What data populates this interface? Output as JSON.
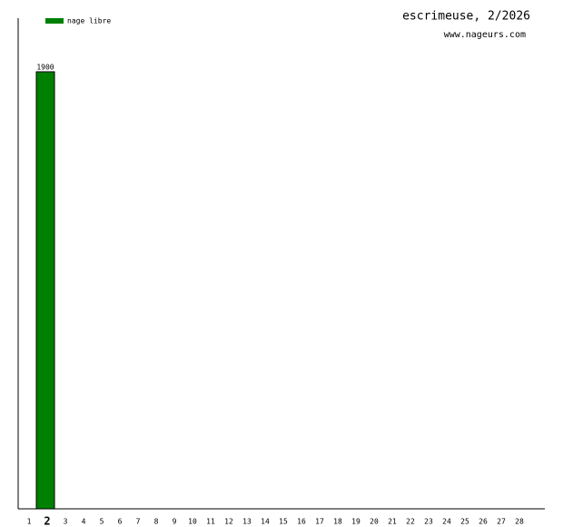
{
  "chart_data": {
    "type": "bar",
    "title": "escrimeuse, 2/2026",
    "subtitle": "www.nageurs.com",
    "categories": [
      "1",
      "2",
      "3",
      "4",
      "5",
      "6",
      "7",
      "8",
      "9",
      "10",
      "11",
      "12",
      "13",
      "14",
      "15",
      "16",
      "17",
      "18",
      "19",
      "20",
      "21",
      "22",
      "23",
      "24",
      "25",
      "26",
      "27",
      "28"
    ],
    "series": [
      {
        "name": "nage libre",
        "color": "#008000",
        "values": [
          null,
          1900,
          null,
          null,
          null,
          null,
          null,
          null,
          null,
          null,
          null,
          null,
          null,
          null,
          null,
          null,
          null,
          null,
          null,
          null,
          null,
          null,
          null,
          null,
          null,
          null,
          null,
          null
        ]
      }
    ],
    "ylim": [
      0,
      2133
    ],
    "highlight_index": 1,
    "data_labels": true
  }
}
